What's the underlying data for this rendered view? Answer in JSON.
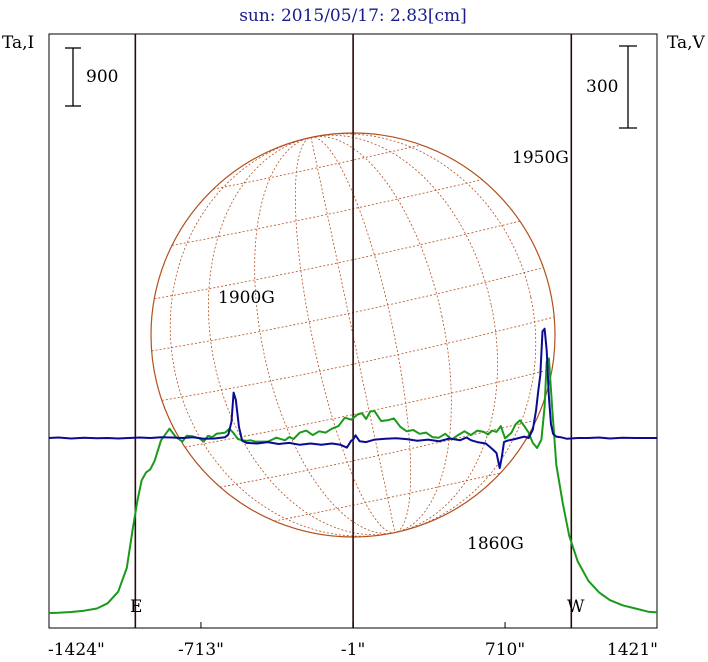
{
  "title": "sun: 2015/05/17: 2.83[cm]",
  "left_axis_label": "Ta,I",
  "right_axis_label": "Ta,V",
  "left_scale_bar_label": "900",
  "right_scale_bar_label": "300",
  "limb_labels": {
    "east": "E",
    "west": "W"
  },
  "annotations": [
    {
      "text": "1900G",
      "x": -560
    },
    {
      "text": "1950G",
      "x": 895
    },
    {
      "text": "1860G",
      "x": 690
    }
  ],
  "colors": {
    "intensity": "#1a9a1a",
    "polarization": "#0a0a96",
    "disk_grid": "#b4501e",
    "vertical_lines": "#2a0a0a",
    "title": "#1a1a8c"
  },
  "chart_data": {
    "type": "line",
    "title": "sun: 2015/05/17: 2.83[cm]",
    "xlabel": "",
    "x_ticks": [
      {
        "label": "-1424\"",
        "value": -1424
      },
      {
        "label": "-713\"",
        "value": -713
      },
      {
        "label": "-1\"",
        "value": -1
      },
      {
        "label": "710\"",
        "value": 710
      },
      {
        "label": "1421\"",
        "value": 1421
      }
    ],
    "xlim": [
      -1424,
      1421
    ],
    "vertical_lines": [
      -1020,
      -1,
      1020
    ],
    "series": [
      {
        "name": "Ta,I",
        "color": "#1a9a1a",
        "x": [
          -1424,
          -1380,
          -1320,
          -1260,
          -1200,
          -1150,
          -1100,
          -1060,
          -1030,
          -1010,
          -990,
          -970,
          -950,
          -930,
          -900,
          -860,
          -830,
          -800,
          -780,
          -750,
          -720,
          -700,
          -680,
          -660,
          -640,
          -620,
          -600,
          -580,
          -560,
          -540,
          -520,
          -500,
          -480,
          -460,
          -440,
          -400,
          -360,
          -320,
          -300,
          -280,
          -250,
          -220,
          -190,
          -160,
          -130,
          -100,
          -70,
          -40,
          -10,
          20,
          40,
          60,
          80,
          100,
          130,
          160,
          190,
          220,
          250,
          280,
          310,
          340,
          370,
          400,
          430,
          460,
          490,
          520,
          550,
          580,
          610,
          630,
          650,
          670,
          690,
          710,
          740,
          760,
          780,
          800,
          820,
          840,
          860,
          880,
          895,
          905,
          915,
          930,
          950,
          980,
          1010,
          1050,
          1100,
          1150,
          1200,
          1260,
          1320,
          1380,
          1421
        ],
        "values": [
          0,
          5,
          15,
          35,
          70,
          150,
          330,
          700,
          1350,
          1750,
          2060,
          2180,
          2230,
          2360,
          2680,
          2860,
          2730,
          2660,
          2750,
          2740,
          2710,
          2660,
          2750,
          2730,
          2780,
          2790,
          2800,
          2860,
          2790,
          2700,
          2680,
          2670,
          2680,
          2660,
          2660,
          2660,
          2720,
          2680,
          2730,
          2700,
          2800,
          2830,
          2760,
          2820,
          2800,
          2860,
          2900,
          3030,
          3000,
          3080,
          3100,
          3010,
          3130,
          3130,
          2980,
          2990,
          3020,
          2890,
          2820,
          2840,
          2780,
          2800,
          2730,
          2720,
          2780,
          2690,
          2760,
          2820,
          2760,
          2830,
          2810,
          2770,
          2830,
          2810,
          2900,
          2710,
          2800,
          2930,
          2990,
          2900,
          2800,
          2640,
          2560,
          2690,
          3200,
          3900,
          3950,
          3200,
          2300,
          1700,
          1200,
          800,
          500,
          320,
          200,
          120,
          70,
          20,
          10
        ]
      },
      {
        "name": "Ta,V",
        "color": "#0a0a96",
        "x": [
          -1424,
          -1380,
          -1320,
          -1260,
          -1200,
          -1150,
          -1100,
          -1050,
          -1000,
          -950,
          -900,
          -850,
          -800,
          -750,
          -700,
          -650,
          -600,
          -585,
          -570,
          -560,
          -550,
          -535,
          -520,
          -500,
          -450,
          -400,
          -350,
          -300,
          -250,
          -200,
          -150,
          -100,
          -60,
          -30,
          -10,
          0,
          10,
          30,
          60,
          100,
          150,
          200,
          250,
          300,
          350,
          400,
          450,
          500,
          530,
          550,
          580,
          620,
          650,
          670,
          685,
          695,
          705,
          720,
          750,
          800,
          820,
          840,
          855,
          865,
          875,
          885,
          895,
          905,
          915,
          925,
          935,
          950,
          970,
          1000,
          1050,
          1100,
          1150,
          1200,
          1260,
          1320,
          1380,
          1421
        ],
        "values": [
          0,
          2,
          -2,
          1,
          -1,
          0,
          -2,
          0,
          2,
          0,
          3,
          2,
          0,
          3,
          -3,
          -2,
          3,
          12,
          60,
          166,
          140,
          40,
          -10,
          -18,
          -20,
          -15,
          -22,
          -18,
          -25,
          -20,
          -25,
          -20,
          -25,
          -35,
          -10,
          -5,
          10,
          -12,
          -15,
          -6,
          -3,
          -1,
          -4,
          -10,
          -6,
          -12,
          -2,
          -8,
          2,
          -8,
          -15,
          -20,
          -40,
          -55,
          -110,
          -70,
          -15,
          -10,
          -5,
          5,
          0,
          30,
          100,
          170,
          230,
          390,
          400,
          320,
          150,
          50,
          15,
          5,
          3,
          -3,
          0,
          0,
          2,
          -2,
          1,
          0,
          0,
          0
        ]
      }
    ]
  }
}
